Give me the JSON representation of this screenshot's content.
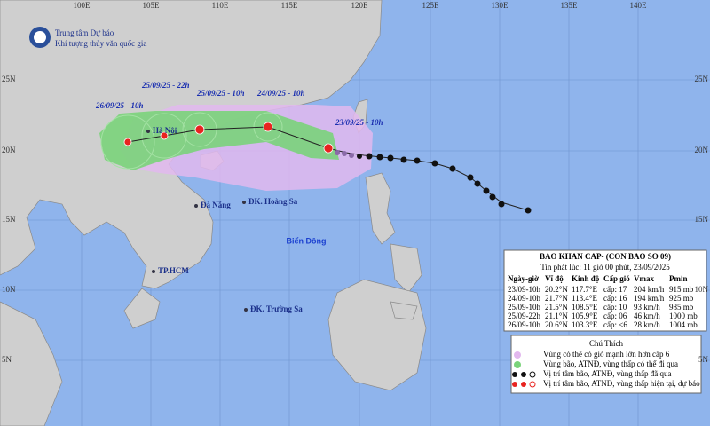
{
  "header": {
    "agency": "Trung tâm Dự báo",
    "agency_sub": "Khí tượng thủy văn quốc gia"
  },
  "grid": {
    "lon": [
      "100E",
      "105E",
      "110E",
      "115E",
      "120E",
      "125E",
      "130E",
      "135E",
      "140E"
    ],
    "lat": [
      "25N",
      "20N",
      "15N",
      "10N",
      "5N"
    ]
  },
  "track_labels": [
    "26/09/25 - 10h",
    "25/09/25 - 22h",
    "25/09/25 - 10h",
    "24/09/25 - 10h",
    "23/09/25 - 10h"
  ],
  "places": [
    "Hà Nội",
    "Đà Nẵng",
    "ĐK. Hoàng Sa",
    "TP.HCM",
    "ĐK. Trường Sa"
  ],
  "sea": "Biển Đông",
  "bulletin": {
    "title": "BAO KHAN CAP- (CON BAO SO 09)",
    "issued": "Tin phát lúc: 11 giờ 00 phút, 23/09/2025",
    "columns": [
      "Ngày-giờ",
      "Vĩ độ",
      "Kinh độ",
      "Cấp gió",
      "Vmax",
      "Pmin"
    ],
    "rows": [
      [
        "23/09-10h",
        "20.2°N",
        "117.7°E",
        "cấp: 17",
        "204 km/h",
        "915 mb"
      ],
      [
        "24/09-10h",
        "21.7°N",
        "113.4°E",
        "cấp: 16",
        "194 km/h",
        "925 mb"
      ],
      [
        "25/09-10h",
        "21.5°N",
        "108.5°E",
        "cấp: 10",
        "93 km/h",
        "985 mb"
      ],
      [
        "25/09-22h",
        "21.1°N",
        "105.9°E",
        "cấp: 06",
        "46 km/h",
        "1000 mb"
      ],
      [
        "26/09-10h",
        "20.6°N",
        "103.3°E",
        "cấp: <6",
        "28 km/h",
        "1004 mb"
      ]
    ]
  },
  "legend": {
    "title": "Chú Thích",
    "items": [
      "Vùng có thể có gió mạnh lớn hơn cấp 6",
      "Vùng bão, ATNĐ, vùng thấp có thể đi qua",
      "Vị trí tâm bão, ATNĐ, vùng thấp đã qua",
      "Vị trí tâm bão, ATNĐ, vùng thấp hiện tại, dự báo"
    ]
  }
}
